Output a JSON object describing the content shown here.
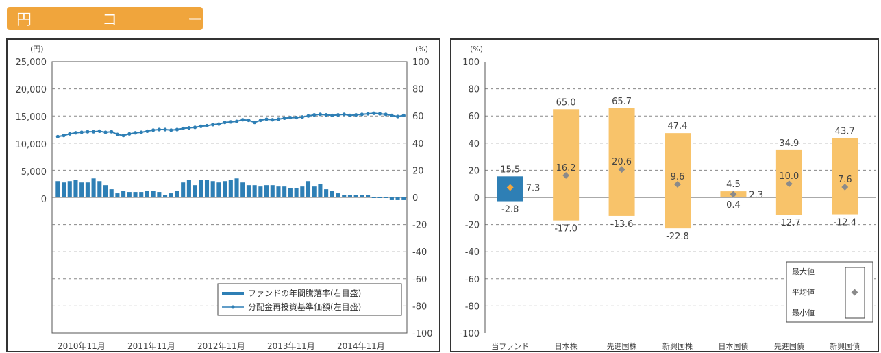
{
  "header": {
    "title": "円 コ ー ス"
  },
  "chart_data": [
    {
      "type": "line+bar",
      "y_left": {
        "unit_label": "(円)",
        "ticks": [
          "25,000",
          "20,000",
          "15,000",
          "10,000",
          "5,000",
          "0"
        ],
        "ylim": [
          0,
          25000
        ]
      },
      "y_right": {
        "unit_label": "(%)",
        "ticks": [
          "100",
          "80",
          "60",
          "40",
          "20",
          "0",
          "-20",
          "-40",
          "-60",
          "-80",
          "-100"
        ],
        "ylim": [
          -100,
          100
        ]
      },
      "x_ticks": [
        "2010年11月",
        "2011年11月",
        "2012年11月",
        "2013年11月",
        "2014年11月"
      ],
      "legend": [
        "ファンドの年間騰落率(右目盛)",
        "分配金再投資基準価額(左目盛)"
      ],
      "series": [
        {
          "name": "ファンドの年間騰落率(右目盛)",
          "kind": "bar",
          "axis": "right",
          "color": "#2e7fb5",
          "values": [
            12,
            11,
            12,
            13,
            11,
            11,
            14,
            12,
            9,
            6,
            3,
            5,
            4,
            4,
            4,
            5,
            5,
            4,
            2,
            3,
            5,
            11,
            13,
            9,
            13,
            13,
            12,
            11,
            12,
            13,
            14,
            11,
            9,
            9,
            8,
            9,
            9,
            8,
            8,
            7,
            7,
            8,
            12,
            8,
            10,
            6,
            5,
            3,
            2,
            2,
            2,
            2,
            2,
            0,
            0,
            0,
            -2,
            -2,
            -2
          ]
        },
        {
          "name": "分配金再投資基準価額(左目盛)",
          "kind": "line",
          "axis": "left",
          "color": "#2e7fb5",
          "values": [
            11200,
            11400,
            11700,
            11900,
            12000,
            12100,
            12100,
            12200,
            12000,
            12100,
            11600,
            11400,
            11700,
            11900,
            12000,
            12200,
            12400,
            12500,
            12500,
            12400,
            12500,
            12700,
            12800,
            12900,
            13100,
            13200,
            13400,
            13500,
            13800,
            13900,
            14000,
            14300,
            14200,
            13800,
            14200,
            14400,
            14300,
            14400,
            14600,
            14700,
            14700,
            14800,
            15000,
            15200,
            15300,
            15200,
            15100,
            15200,
            15300,
            15100,
            15200,
            15300,
            15400,
            15500,
            15400,
            15300,
            15100,
            14900,
            15100
          ]
        }
      ]
    },
    {
      "type": "range-bar",
      "y_axis": {
        "unit_label": "(%)",
        "ticks": [
          "100",
          "80",
          "60",
          "40",
          "20",
          "0",
          "-20",
          "-40",
          "-60",
          "-80",
          "-100"
        ],
        "ylim": [
          -100,
          100
        ]
      },
      "categories": [
        "当ファンド",
        "日本株",
        "先進国株",
        "新興国株",
        "日本国債",
        "先進国債",
        "新興国債"
      ],
      "max": [
        15.5,
        65.0,
        65.7,
        47.4,
        4.5,
        34.9,
        43.7
      ],
      "avg": [
        7.3,
        16.2,
        20.6,
        9.6,
        2.3,
        10.0,
        7.6
      ],
      "min": [
        -2.8,
        -17.0,
        -13.6,
        -22.8,
        0.4,
        -12.7,
        -12.4
      ],
      "max_labels": [
        "15.5",
        "65.0",
        "65.7",
        "47.4",
        "4.5",
        "34.9",
        "43.7"
      ],
      "avg_labels": [
        "7.3",
        "16.2",
        "20.6",
        "9.6",
        "2.3",
        "10.0",
        "7.6"
      ],
      "min_labels": [
        "-2.8",
        "-17.0",
        "-13.6",
        "-22.8",
        "0.4",
        "-12.7",
        "-12.4"
      ],
      "colors": {
        "fund": "#2e7fb5",
        "others": "#f8c36a",
        "avg_marker": "#8a8a8a"
      },
      "legend": {
        "max": "最大値",
        "avg": "平均値",
        "min": "最小値"
      }
    }
  ]
}
